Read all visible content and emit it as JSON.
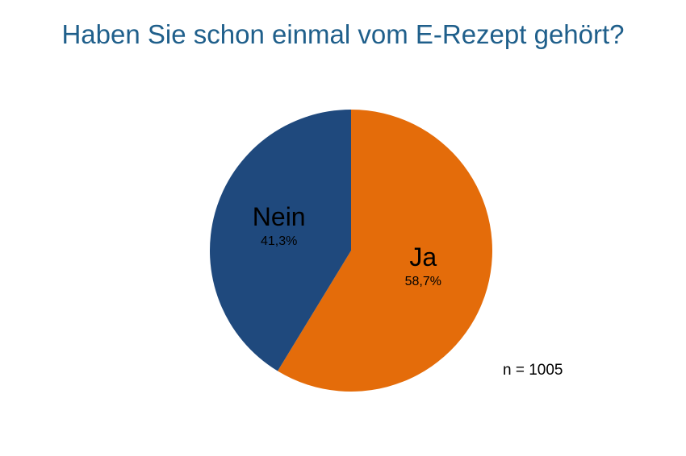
{
  "chart_data": {
    "type": "pie",
    "title": "Haben Sie schon einmal vom E-Rezept gehört?",
    "slices": [
      {
        "label": "Ja",
        "value": 58.7,
        "value_label": "58,7%",
        "color": "#e46c0a"
      },
      {
        "label": "Nein",
        "value": 41.3,
        "value_label": "41,3%",
        "color": "#1f497d"
      }
    ],
    "start_angle": "12 o'clock",
    "direction": "clockwise",
    "legend": "none",
    "annotation": "n = 1005"
  }
}
